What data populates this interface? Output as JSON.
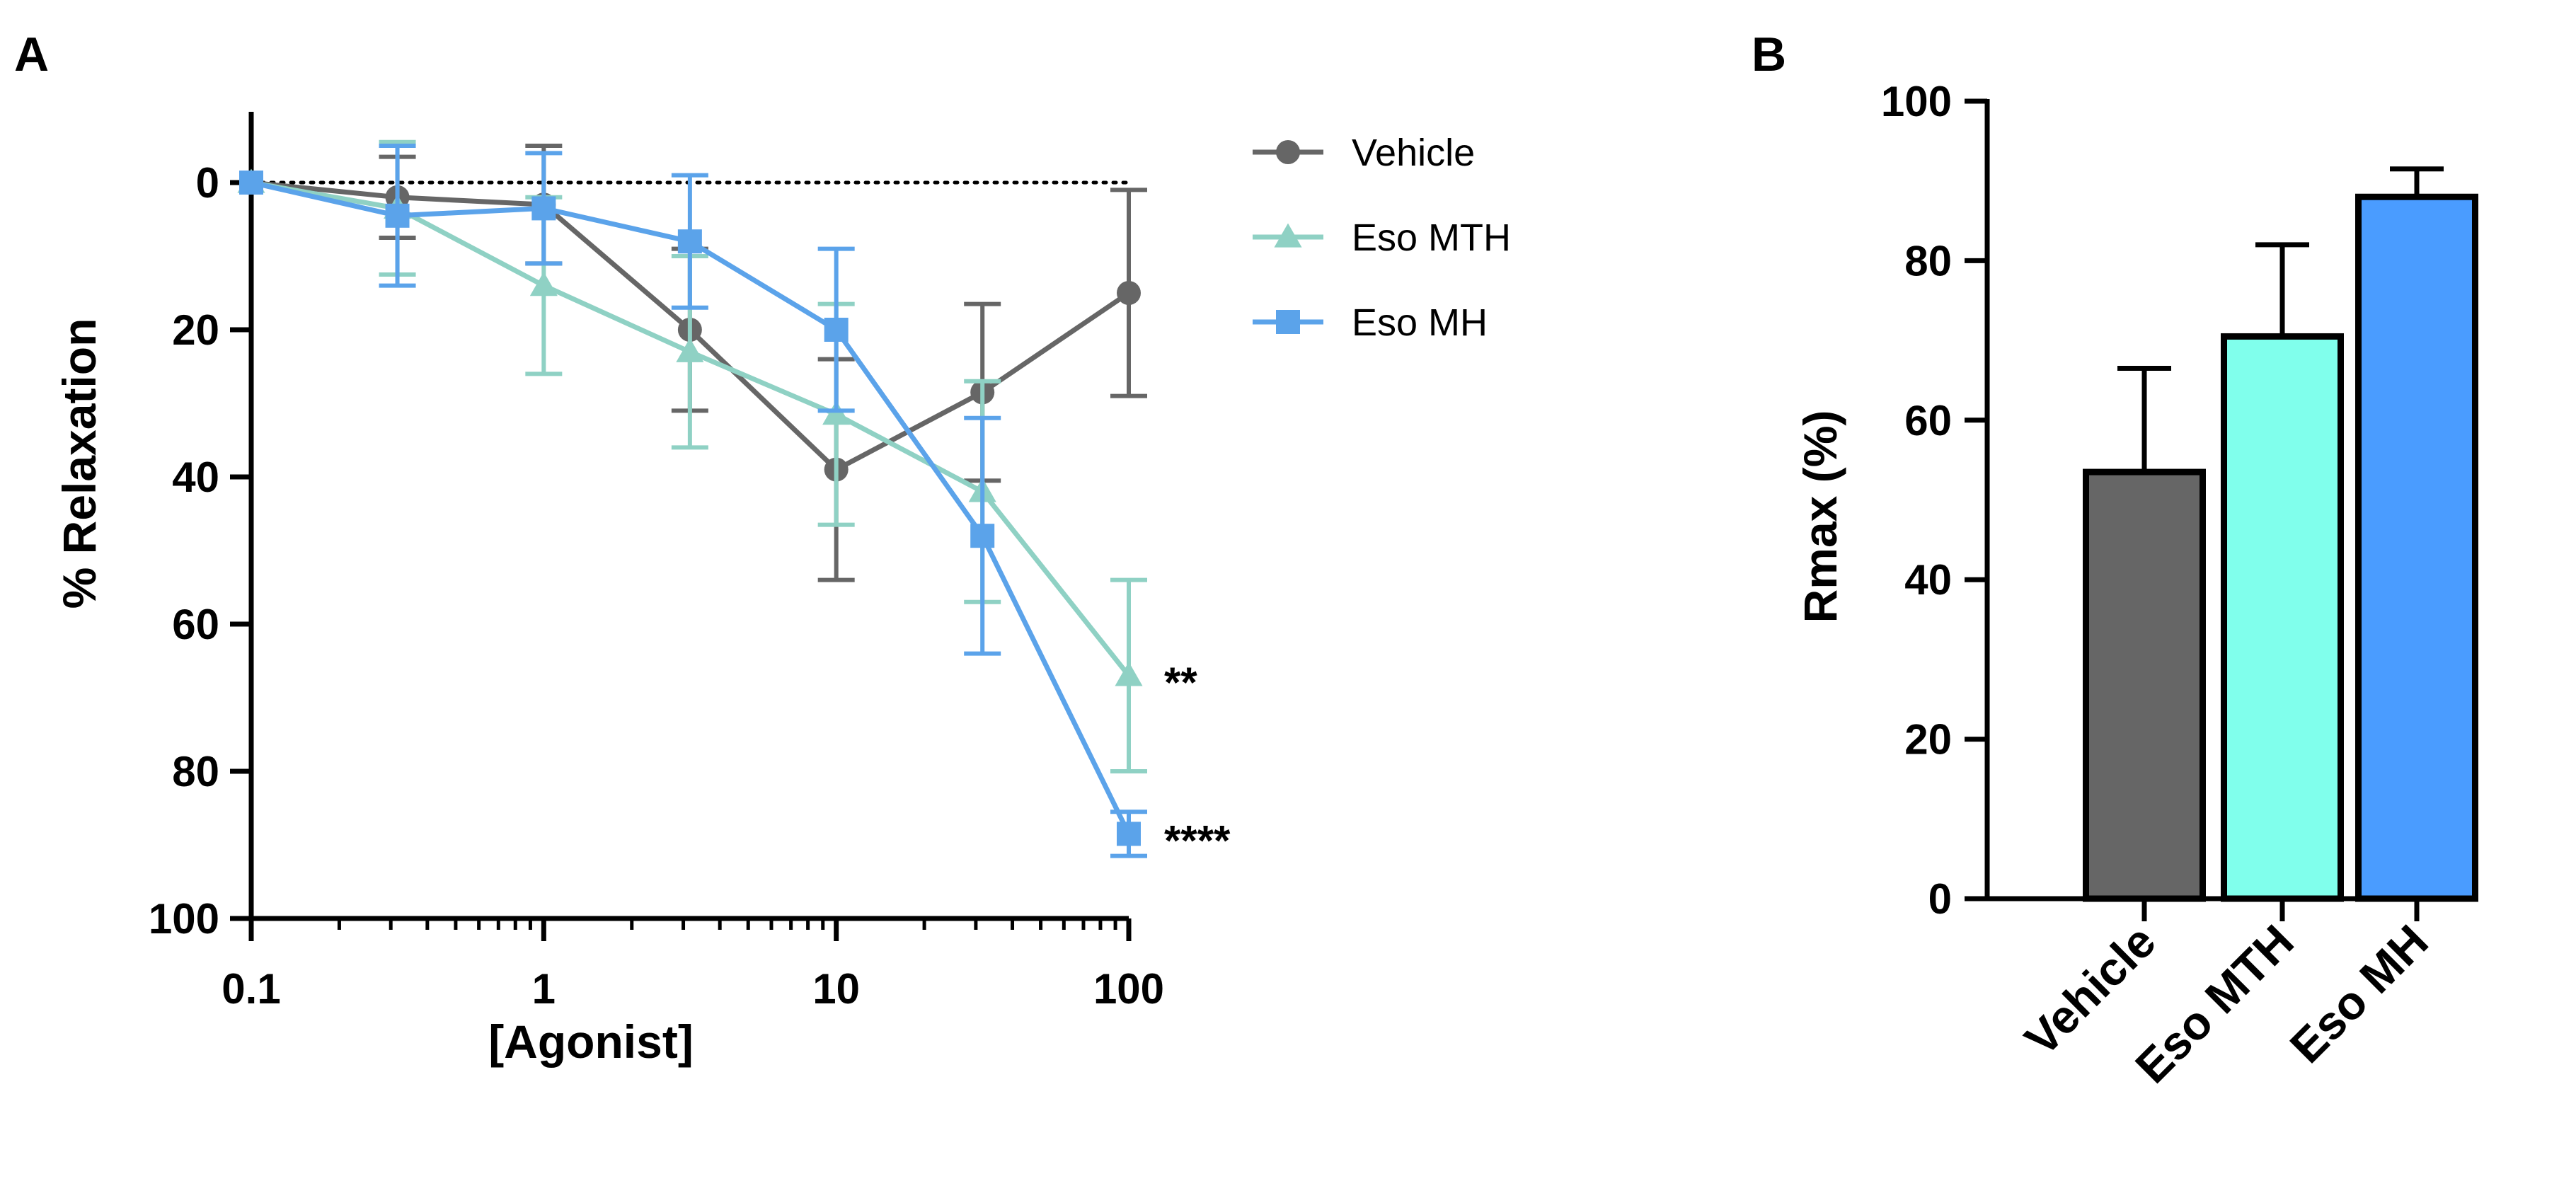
{
  "panels": {
    "a_label": "A",
    "b_label": "B"
  },
  "chart_data": [
    {
      "type": "line",
      "xlabel": "[Agonist]",
      "ylabel": "% Relaxation",
      "x_scale": "log",
      "xlim": [
        0.1,
        100
      ],
      "ylim": [
        -10,
        100
      ],
      "y_inverted": true,
      "x_ticks": [
        0.1,
        1,
        10,
        100
      ],
      "x_tick_labels": [
        "0.1",
        "1",
        "10",
        "100"
      ],
      "y_ticks": [
        0,
        20,
        40,
        60,
        80,
        100
      ],
      "y_tick_labels": [
        "0",
        "20",
        "40",
        "60",
        "80",
        "100"
      ],
      "reference_line": 0,
      "grid": false,
      "legend_position": "top-right",
      "x": [
        0.1,
        0.316,
        1,
        3.16,
        10,
        31.6,
        100
      ],
      "series": [
        {
          "name": "Vehicle",
          "marker": "circle",
          "color": "#666666",
          "values": [
            0,
            2,
            3,
            20,
            39,
            28.5,
            15
          ],
          "errors": [
            0,
            5.5,
            8,
            11,
            15,
            12,
            14
          ]
        },
        {
          "name": "Eso MTH",
          "marker": "triangle",
          "color": "#8fd1c4",
          "values": [
            0,
            3.5,
            14,
            23,
            31.5,
            42,
            67
          ],
          "errors": [
            0,
            9,
            12,
            13,
            15,
            15,
            13
          ]
        },
        {
          "name": "Eso MH",
          "marker": "square",
          "color": "#5ba3ea",
          "values": [
            0,
            4.5,
            3.5,
            8,
            20,
            48,
            88.5
          ],
          "errors": [
            0,
            9.5,
            7.5,
            9,
            11,
            16,
            3
          ]
        }
      ],
      "annotations": [
        {
          "text": "**",
          "series": "Eso MTH"
        },
        {
          "text": "****",
          "series": "Eso MH"
        }
      ]
    },
    {
      "type": "bar",
      "ylabel": "Rmax (%)",
      "xlabel": "",
      "ylim": [
        0,
        100
      ],
      "y_ticks": [
        0,
        20,
        40,
        60,
        80,
        100
      ],
      "y_tick_labels": [
        "0",
        "20",
        "40",
        "60",
        "80",
        "100"
      ],
      "categories": [
        "Vehicle",
        "Eso MTH",
        "Eso MH"
      ],
      "values": [
        53.5,
        70.5,
        88
      ],
      "errors": [
        13,
        11.5,
        3.5
      ],
      "colors": [
        "#666666",
        "#80ffec",
        "#4a9cff"
      ]
    }
  ]
}
